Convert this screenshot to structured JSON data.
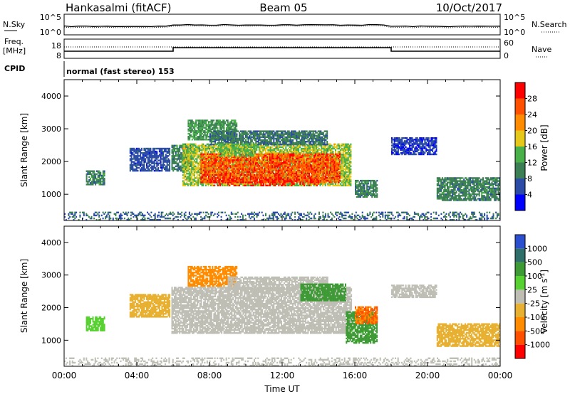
{
  "header": {
    "station": "Hankasalmi (fitACF)",
    "beam": "Beam 05",
    "date": "10/Oct/2017"
  },
  "strip_labels": {
    "nsky": "N.Sky",
    "nsearch": "N.Search",
    "freq_line1": "Freq.",
    "freq_line2": "[MHz]",
    "nave": "Nave",
    "cpid": "CPID",
    "cpid_text": "normal (fast stereo) 153"
  },
  "strip_ticks": {
    "noise_left": [
      "10^5",
      "10^0"
    ],
    "noise_right": [
      "10^5",
      "10^0"
    ],
    "freq_left": [
      "18",
      "8"
    ],
    "nave_right": [
      "60",
      "0"
    ]
  },
  "colors": {
    "power_scale": [
      "#0000ff",
      "#2b4ba6",
      "#3d7f55",
      "#49b04a",
      "#e6c81a",
      "#ff8c00",
      "#ff5000",
      "#ff0000"
    ],
    "velocity_scale": [
      "#2c4fcf",
      "#2f6f6a",
      "#3e9a35",
      "#57d131",
      "#bebeb5",
      "#e8b030",
      "#ff8c00",
      "#ff5000",
      "#ff0000"
    ]
  },
  "chart_data": [
    {
      "type": "heatmap",
      "name": "power",
      "xlabel": "",
      "ylabel": "Slant Range [km]",
      "x_range_hours": [
        0,
        24
      ],
      "ylim": [
        200,
        4500
      ],
      "y_ticks": [
        "1000",
        "2000",
        "3000",
        "4000"
      ],
      "colorbar": {
        "label": "Power [dB]",
        "ticks": [
          "28",
          "24",
          "20",
          "16",
          "12",
          "8",
          "4"
        ],
        "range": [
          0,
          32
        ]
      },
      "regions": [
        {
          "t": [
            1.2,
            2.2
          ],
          "r": [
            1280,
            1720
          ],
          "v": 10
        },
        {
          "t": [
            3.6,
            5.8
          ],
          "r": [
            1700,
            2400
          ],
          "v": 6
        },
        {
          "t": [
            5.9,
            7.0
          ],
          "r": [
            1700,
            2500
          ],
          "v": 10
        },
        {
          "t": [
            6.5,
            15.8
          ],
          "r": [
            1250,
            2550
          ],
          "v": 16
        },
        {
          "t": [
            7.5,
            15.2
          ],
          "r": [
            1350,
            2250
          ],
          "v": 26
        },
        {
          "t": [
            8.0,
            14.0
          ],
          "r": [
            1250,
            1500
          ],
          "v": 31
        },
        {
          "t": [
            6.8,
            9.5
          ],
          "r": [
            2650,
            3250
          ],
          "v": 12
        },
        {
          "t": [
            8.0,
            14.5
          ],
          "r": [
            2500,
            2950
          ],
          "v": 9
        },
        {
          "t": [
            8.5,
            10.5
          ],
          "r": [
            2150,
            2550
          ],
          "v": 15
        },
        {
          "t": [
            16.0,
            17.2
          ],
          "r": [
            900,
            1400
          ],
          "v": 10
        },
        {
          "t": [
            18.0,
            20.5
          ],
          "r": [
            2200,
            2700
          ],
          "v": 5
        },
        {
          "t": [
            20.5,
            24.0
          ],
          "r": [
            800,
            1500
          ],
          "v": 10
        },
        {
          "t": [
            0.0,
            24.0
          ],
          "r": [
            200,
            450
          ],
          "v": 8
        }
      ]
    },
    {
      "type": "heatmap",
      "name": "velocity",
      "xlabel": "Time UT",
      "ylabel": "Slant Range [km]",
      "x_range_hours": [
        0,
        24
      ],
      "x_ticks": [
        "00:00",
        "04:00",
        "08:00",
        "12:00",
        "16:00",
        "20:00",
        "00:00"
      ],
      "ylim": [
        200,
        4500
      ],
      "y_ticks": [
        "1000",
        "2000",
        "3000",
        "4000"
      ],
      "colorbar": {
        "label": "Velocity [m s^-1]",
        "ticks": [
          "1000",
          "500",
          "100",
          "25",
          "-25",
          "-100",
          "-500",
          "-1000"
        ]
      },
      "regions": [
        {
          "t": [
            1.2,
            2.2
          ],
          "r": [
            1280,
            1720
          ],
          "v": 80
        },
        {
          "t": [
            3.6,
            5.8
          ],
          "r": [
            1700,
            2400
          ],
          "v": -40
        },
        {
          "t": [
            5.9,
            15.8
          ],
          "r": [
            1200,
            2600
          ],
          "v": 0
        },
        {
          "t": [
            6.8,
            9.5
          ],
          "r": [
            2650,
            3250
          ],
          "v": -250
        },
        {
          "t": [
            9.0,
            14.5
          ],
          "r": [
            2550,
            2950
          ],
          "v": 0
        },
        {
          "t": [
            13.0,
            15.5
          ],
          "r": [
            2200,
            2700
          ],
          "v": 200
        },
        {
          "t": [
            15.5,
            17.2
          ],
          "r": [
            900,
            1850
          ],
          "v": 120
        },
        {
          "t": [
            16.0,
            17.2
          ],
          "r": [
            1500,
            2000
          ],
          "v": -300
        },
        {
          "t": [
            18.0,
            20.5
          ],
          "r": [
            2300,
            2700
          ],
          "v": 0
        },
        {
          "t": [
            20.5,
            24.0
          ],
          "r": [
            800,
            1500
          ],
          "v": -60
        },
        {
          "t": [
            0.0,
            24.0
          ],
          "r": [
            200,
            450
          ],
          "v": 0
        }
      ]
    }
  ]
}
